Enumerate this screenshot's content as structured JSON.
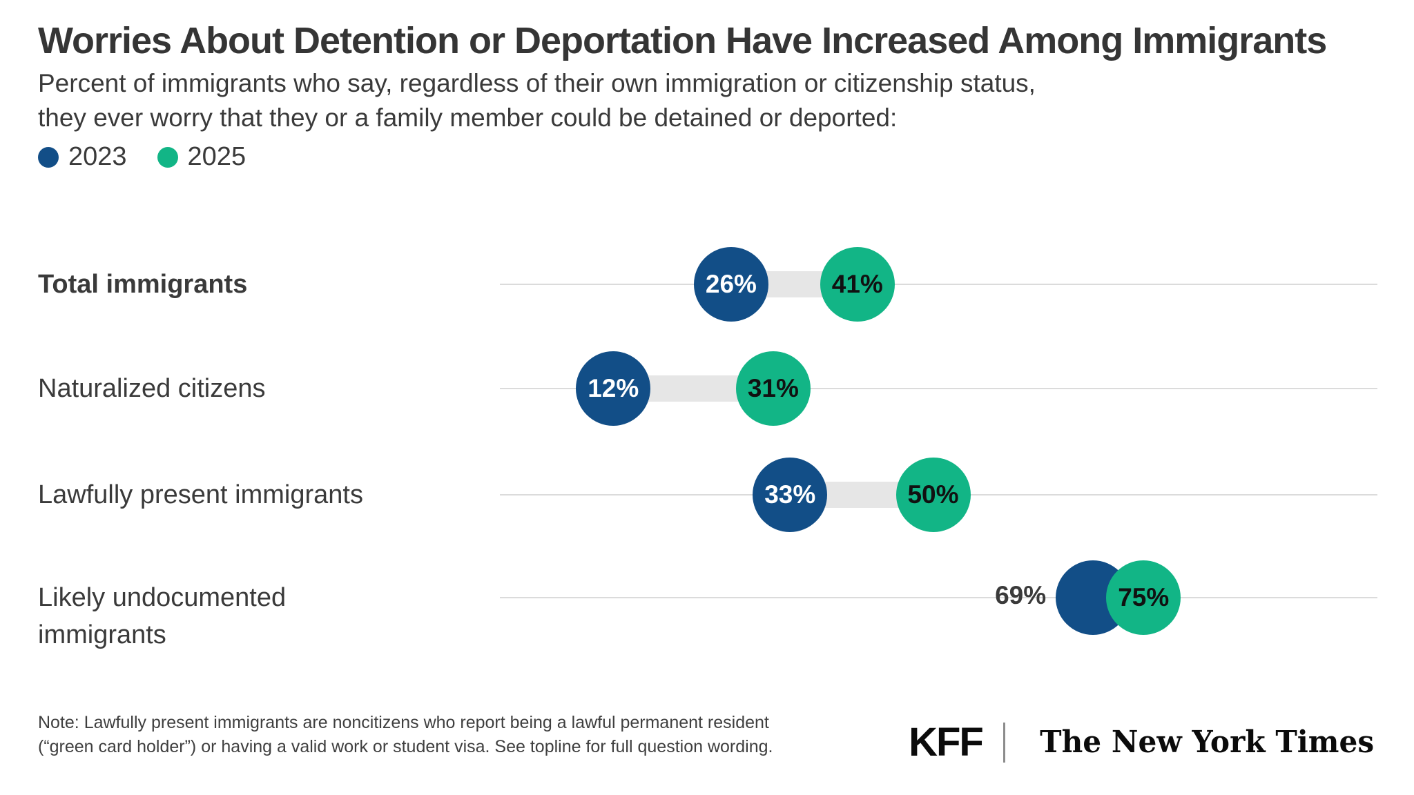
{
  "title": "Worries About Detention or Deportation Have Increased Among Immigrants",
  "subtitle_lines": [
    "Percent of immigrants who say, regardless of their own immigration or citizenship status,",
    "they ever worry that they or a family member could be detained or deported:"
  ],
  "legend": [
    {
      "label": "2023",
      "color": "#124e87"
    },
    {
      "label": "2025",
      "color": "#12b586"
    }
  ],
  "colors": {
    "series_2023": "#124e87",
    "series_2025": "#12b586",
    "connector": "#e6e6e6",
    "baseline": "#dbdbdb",
    "text": "#3a3a3a"
  },
  "chart_data": {
    "type": "dumbbell",
    "title": "Worries About Detention or Deportation Have Increased Among Immigrants",
    "categories": [
      "Total immigrants",
      "Naturalized citizens",
      "Lawfully present immigrants",
      "Likely undocumented immigrants"
    ],
    "series": [
      {
        "name": "2023",
        "values": [
          26,
          12,
          33,
          69
        ]
      },
      {
        "name": "2025",
        "values": [
          41,
          31,
          50,
          75
        ]
      }
    ],
    "value_suffix": "%",
    "xlim": [
      0,
      100
    ],
    "legend_position": "top-left",
    "grid": "row-baselines-only",
    "rows": [
      {
        "category": "Total immigrants",
        "bold": true,
        "v2023": 26,
        "v2025": 41,
        "label_2023_inside": true
      },
      {
        "category": "Naturalized citizens",
        "bold": false,
        "v2023": 12,
        "v2025": 31,
        "label_2023_inside": true
      },
      {
        "category": "Lawfully present immigrants",
        "bold": false,
        "v2023": 33,
        "v2025": 50,
        "label_2023_inside": true
      },
      {
        "category": "Likely undocumented immigrants",
        "bold": false,
        "v2023": 69,
        "v2025": 75,
        "label_2023_inside": false
      }
    ]
  },
  "note_lines": [
    "Note: Lawfully present immigrants are noncitizens who report being a lawful permanent resident",
    "(“green card holder”) or having a valid work or student visa. See topline for full question wording."
  ],
  "footer": {
    "kff": "KFF",
    "nyt": "The New York Times"
  }
}
